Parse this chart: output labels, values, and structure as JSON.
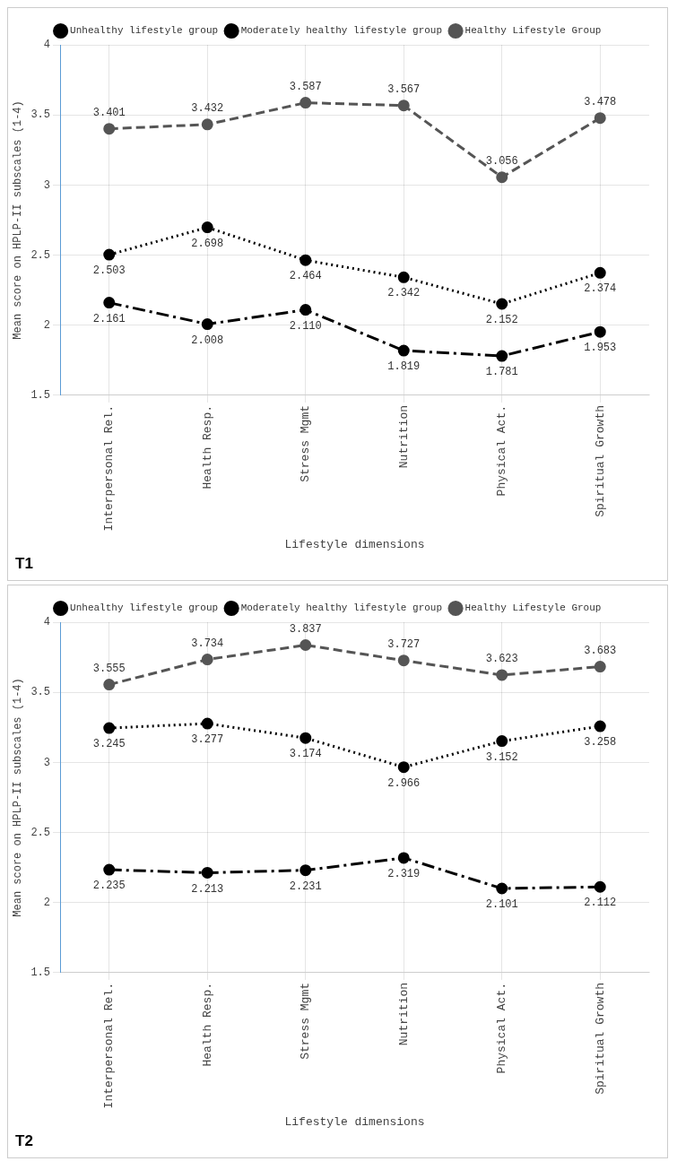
{
  "chart_data": [
    {
      "type": "line",
      "categories": [
        "Interpersonal Rel.",
        "Health Resp.",
        "Stress Mgmt",
        "Nutrition",
        "Physical Act.",
        "Spiritual Growth"
      ],
      "xlabel": "Lifestyle dimensions",
      "ylabel": "Mean score on HPLP-II subscales (1-4)",
      "ylim": [
        1.5,
        4
      ],
      "yticks": [
        1.5,
        2,
        2.5,
        3,
        3.5,
        4
      ],
      "grid": true,
      "legend": "top",
      "marker": "circle",
      "annotations": [
        "T1"
      ],
      "series": [
        {
          "name": "Unhealthy lifestyle group",
          "color": "#000000",
          "line_style": "dashed",
          "values": [
            2.161,
            2.008,
            2.11,
            1.819,
            1.781,
            1.953
          ],
          "value_labels": [
            "2.161",
            "2.008",
            "2.110",
            "1.819",
            "1.781",
            "1.953"
          ]
        },
        {
          "name": "Moderately healthy lifestyle group",
          "color": "#000000",
          "line_style": "dotted",
          "values": [
            2.503,
            2.698,
            2.464,
            2.342,
            2.152,
            2.374
          ],
          "value_labels": [
            "2.503",
            "2.698",
            "2.464",
            "2.342",
            "2.152",
            "2.374"
          ]
        },
        {
          "name": "Healthy Lifestyle Group",
          "color": "#555555",
          "line_style": "dashed",
          "values": [
            3.401,
            3.432,
            3.587,
            3.567,
            3.056,
            3.478
          ],
          "value_labels": [
            "3.401",
            "3.432",
            "3.587",
            "3.567",
            "3.056",
            "3.478"
          ]
        }
      ]
    },
    {
      "type": "line",
      "categories": [
        "Interpersonal Rel.",
        "Health Resp.",
        "Stress Mgmt",
        "Nutrition",
        "Physical Act.",
        "Spiritual Growth"
      ],
      "xlabel": "Lifestyle dimensions",
      "ylabel": "Mean score on HPLP-II subscales (1-4)",
      "ylim": [
        1.5,
        4
      ],
      "yticks": [
        1.5,
        2,
        2.5,
        3,
        3.5,
        4
      ],
      "grid": true,
      "legend": "top",
      "marker": "circle",
      "annotations": [
        "T2"
      ],
      "series": [
        {
          "name": "Unhealthy lifestyle group",
          "color": "#000000",
          "line_style": "dashed",
          "values": [
            2.235,
            2.213,
            2.231,
            2.319,
            2.101,
            2.112
          ],
          "value_labels": [
            "2.235",
            "2.213",
            "2.231",
            "2.319",
            "2.101",
            "2.112"
          ]
        },
        {
          "name": "Moderately healthy lifestyle group",
          "color": "#000000",
          "line_style": "dotted",
          "values": [
            3.245,
            3.277,
            3.174,
            2.966,
            3.152,
            3.258
          ],
          "value_labels": [
            "3.245",
            "3.277",
            "3.174",
            "2.966",
            "3.152",
            "3.258"
          ]
        },
        {
          "name": "Healthy Lifestyle Group",
          "color": "#555555",
          "line_style": "dashed",
          "values": [
            3.555,
            3.734,
            3.837,
            3.727,
            3.623,
            3.683
          ],
          "value_labels": [
            "3.555",
            "3.734",
            "3.837",
            "3.727",
            "3.623",
            "3.683"
          ]
        }
      ]
    }
  ]
}
